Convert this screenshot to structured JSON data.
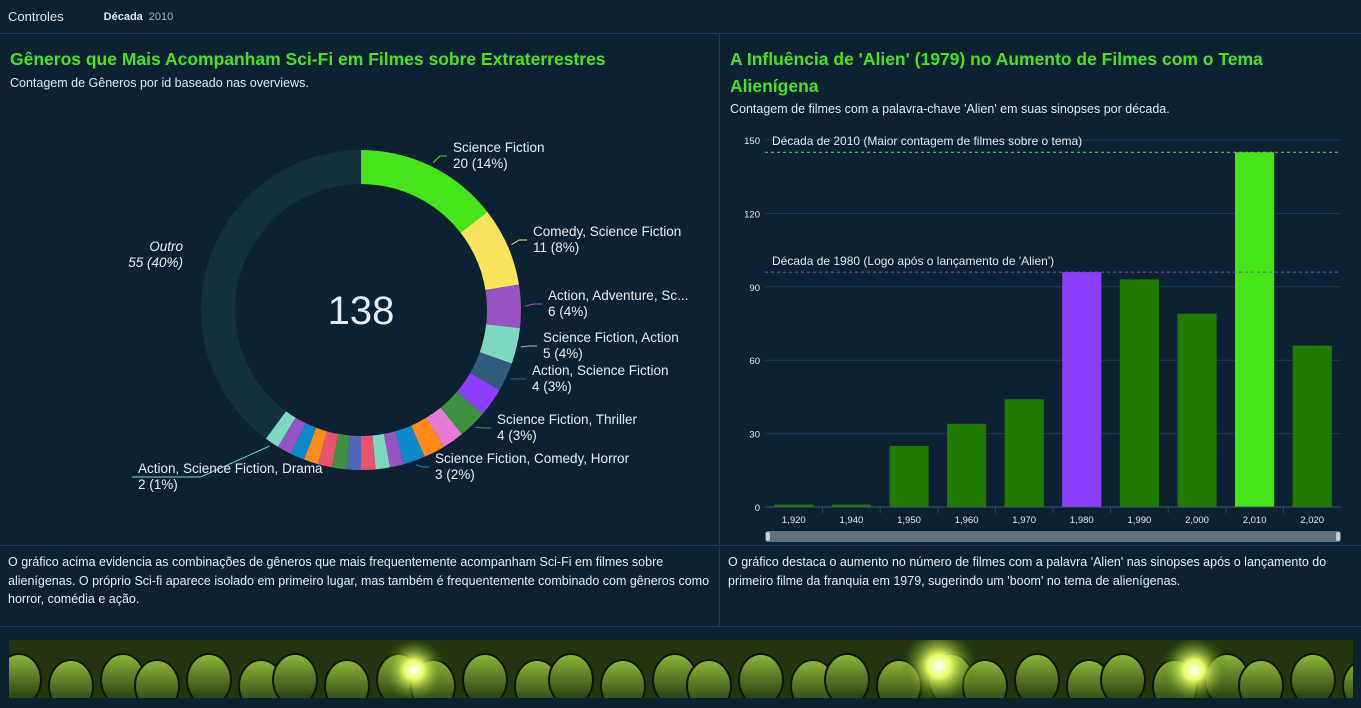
{
  "controls": {
    "label": "Controles",
    "filter_key": "Década",
    "filter_value": "2010"
  },
  "left_panel": {
    "title": "Gêneros que Mais Acompanham Sci-Fi em Filmes sobre Extraterrestres",
    "subtitle": "Contagem de Gêneros por id baseado nas overviews.",
    "description": "O gráfico acima evidencia as combinações de gêneros que mais frequentemente acompanham Sci-Fi em filmes sobre alienígenas. O próprio Sci-fi aparece isolado em primeiro lugar, mas também é frequentemente combinado com gêneros como horror, comédia e ação."
  },
  "right_panel": {
    "title": "A Influência de 'Alien' (1979) no Aumento de Filmes com o Tema Alienígena",
    "subtitle": "Contagem de filmes com a palavra-chave 'Alien' em suas sinopses por década.",
    "description": "O gráfico destaca o aumento no número de filmes com a palavra 'Alien' nas sinopses após o lançamento do primeiro filme da franquia em 1979, sugerindo um 'boom' no tema de alienígenas."
  },
  "chart_data": [
    {
      "type": "pie",
      "variant": "donut",
      "center_label": "138",
      "slices": [
        {
          "label": "Science Fiction",
          "value": 20,
          "pct": "14%",
          "color": "#47e41a"
        },
        {
          "label": "Comedy, Science Fiction",
          "value": 11,
          "pct": "8%",
          "color": "#f7e45c"
        },
        {
          "label": "Action, Adventure, Sc...",
          "value": 6,
          "pct": "4%",
          "color": "#9653c1"
        },
        {
          "label": "Science Fiction, Action",
          "value": 5,
          "pct": "4%",
          "color": "#7dd8c2"
        },
        {
          "label": "Action, Science Fiction",
          "value": 4,
          "pct": "3%",
          "color": "#2f5e7a"
        },
        {
          "label": "",
          "value": 4,
          "pct": "",
          "color": "#8a3ffc"
        },
        {
          "label": "Science Fiction, Thriller",
          "value": 4,
          "pct": "3%",
          "color": "#3f9142"
        },
        {
          "label": "",
          "value": 3,
          "pct": "",
          "color": "#e77bd4"
        },
        {
          "label": "",
          "value": 3,
          "pct": "",
          "color": "#ff8c1a"
        },
        {
          "label": "Science Fiction, Comedy, Horror",
          "value": 3,
          "pct": "2%",
          "color": "#0b89c9"
        },
        {
          "label": "",
          "value": 2,
          "pct": "",
          "color": "#9653c1"
        },
        {
          "label": "",
          "value": 2,
          "pct": "",
          "color": "#7dd8c2"
        },
        {
          "label": "",
          "value": 2,
          "pct": "",
          "color": "#e8546b"
        },
        {
          "label": "",
          "value": 2,
          "pct": "",
          "color": "#5067b5"
        },
        {
          "label": "",
          "value": 2,
          "pct": "",
          "color": "#3f9142"
        },
        {
          "label": "",
          "value": 2,
          "pct": "",
          "color": "#e8546b"
        },
        {
          "label": "",
          "value": 2,
          "pct": "",
          "color": "#ff8c1a"
        },
        {
          "label": "",
          "value": 2,
          "pct": "",
          "color": "#0b89c9"
        },
        {
          "label": "",
          "value": 2,
          "pct": "",
          "color": "#9653c1"
        },
        {
          "label": "Action, Science Fiction, Drama",
          "value": 2,
          "pct": "1%",
          "color": "#7dd8c2"
        },
        {
          "label": "Outro",
          "value": 55,
          "pct": "40%",
          "color": "#13303f"
        }
      ]
    },
    {
      "type": "bar",
      "categories": [
        "1,920",
        "1,940",
        "1,950",
        "1,960",
        "1,970",
        "1,980",
        "1,990",
        "2,000",
        "2,010",
        "2,020"
      ],
      "values": [
        1,
        1,
        25,
        34,
        44,
        96,
        93,
        79,
        145,
        66
      ],
      "colors": [
        "#1f7a00",
        "#1f7a00",
        "#1f7a00",
        "#1f7a00",
        "#1f7a00",
        "#8a3ffc",
        "#1f7a00",
        "#1f7a00",
        "#47e41a",
        "#1f7a00"
      ],
      "ylim": [
        0,
        150
      ],
      "yticks": [
        0,
        30,
        60,
        90,
        120,
        150
      ],
      "grid": true,
      "reference_lines": [
        {
          "value": 145,
          "label": "Década de 2010 (Maior contagem de filmes sobre o tema)",
          "color": "#47e41a"
        },
        {
          "value": 96,
          "label": "Década de 1980 (Logo após o lançamento de 'Alien')",
          "color": "#8a3ffc"
        }
      ]
    }
  ]
}
